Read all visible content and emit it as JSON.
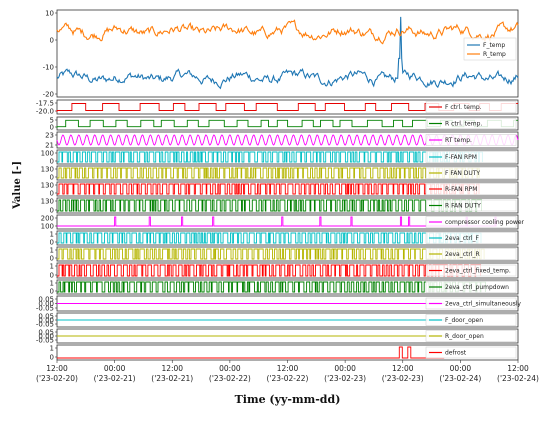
{
  "chart_data": {
    "type": "line",
    "xlabel": "Time (yy-mm-dd)",
    "ylabel": "Value [-]",
    "x_range_days": [
      0,
      4.0
    ],
    "x_ticks": [
      {
        "pos": 0.0,
        "time": "12:00",
        "date": "('23-02-20)"
      },
      {
        "pos": 0.5,
        "time": "00:00",
        "date": "('23-02-21)"
      },
      {
        "pos": 1.0,
        "time": "12:00",
        "date": "('23-02-21)"
      },
      {
        "pos": 1.5,
        "time": "00:00",
        "date": "('23-02-22)"
      },
      {
        "pos": 2.0,
        "time": "12:00",
        "date": "('23-02-22)"
      },
      {
        "pos": 2.5,
        "time": "00:00",
        "date": "('23-02-23)"
      },
      {
        "pos": 3.0,
        "time": "12:00",
        "date": "('23-02-23)"
      },
      {
        "pos": 3.5,
        "time": "00:00",
        "date": "('23-02-24)"
      },
      {
        "pos": 4.0,
        "time": "12:00",
        "date": "('23-02-24)"
      }
    ],
    "panels": [
      {
        "id": "temps",
        "yticks": [
          "10",
          "0",
          "-10",
          "-20"
        ],
        "ylim": [
          -24,
          10
        ],
        "series": [
          {
            "name": "F_temp",
            "color": "#1f77b4",
            "kind": "noise",
            "base": -17,
            "amp": 3,
            "spike_day": 2.98,
            "spike_val": 8
          },
          {
            "name": "R_temp",
            "color": "#ff7f0e",
            "kind": "noise",
            "base": 2,
            "amp": 3
          }
        ]
      },
      {
        "id": "f-ctrl",
        "yticks": [
          "-17.5",
          "-20.0"
        ],
        "series": [
          {
            "name": "F ctrl. temp.",
            "color": "#e60000",
            "kind": "step",
            "switches": 30
          }
        ]
      },
      {
        "id": "r-ctrl",
        "yticks": [
          "5",
          "0"
        ],
        "series": [
          {
            "name": "R ctrl. temp.",
            "color": "#008000",
            "kind": "step",
            "switches": 40
          }
        ]
      },
      {
        "id": "rt",
        "yticks": [
          "23",
          "21"
        ],
        "series": [
          {
            "name": "RT temp.",
            "color": "#ff00ff",
            "kind": "wave",
            "cycles": 58
          }
        ]
      },
      {
        "id": "ffan",
        "yticks": [
          "100",
          "0"
        ],
        "series": [
          {
            "name": "F-FAN RPM",
            "color": "#00bfc4",
            "kind": "pulse",
            "count": 60
          }
        ]
      },
      {
        "id": "fduty",
        "yticks": [
          "130",
          "0"
        ],
        "series": [
          {
            "name": "F FAN DUTY",
            "color": "#b5b500",
            "kind": "pulse",
            "count": 60
          }
        ]
      },
      {
        "id": "rfan",
        "yticks": [
          "130",
          "0"
        ],
        "series": [
          {
            "name": "R-FAN RPM",
            "color": "#ff0000",
            "kind": "pulse",
            "count": 60
          }
        ]
      },
      {
        "id": "rduty",
        "yticks": [
          "130",
          "0"
        ],
        "series": [
          {
            "name": "R FAN DUTY",
            "color": "#008000",
            "kind": "pulse",
            "count": 60
          }
        ]
      },
      {
        "id": "comp",
        "yticks": [
          "200",
          "100"
        ],
        "series": [
          {
            "name": "compressor cooling power",
            "color": "#ff00ff",
            "kind": "spikes",
            "days": [
              0.5,
              0.8,
              1.08,
              1.35,
              1.95,
              2.28,
              2.55,
              2.98,
              3.05,
              3.55,
              3.8
            ]
          }
        ]
      },
      {
        "id": "eva-f",
        "yticks": [
          "1",
          "0"
        ],
        "series": [
          {
            "name": "2eva_ctrl_F",
            "color": "#00bfc4",
            "kind": "pulse",
            "count": 70
          }
        ]
      },
      {
        "id": "eva-r",
        "yticks": [
          "1",
          "0"
        ],
        "series": [
          {
            "name": "2eva_ctrl_R",
            "color": "#b5b500",
            "kind": "pulse",
            "count": 70
          }
        ]
      },
      {
        "id": "eva-fixed",
        "yticks": [
          "1",
          "0"
        ],
        "series": [
          {
            "name": "2eva_ctrl_fixed_temp.",
            "color": "#ff0000",
            "kind": "pulse",
            "count": 70
          }
        ]
      },
      {
        "id": "eva-pump",
        "yticks": [
          "1",
          "0"
        ],
        "series": [
          {
            "name": "2eva_ctrl_pumpdown",
            "color": "#008000",
            "kind": "pulse",
            "count": 70
          }
        ]
      },
      {
        "id": "eva-sim",
        "yticks": [
          "0.05",
          "0.00",
          "-0.05"
        ],
        "series": [
          {
            "name": "2eva_ctrl_simultaneously",
            "color": "#ff00ff",
            "kind": "flat"
          }
        ]
      },
      {
        "id": "fdoor",
        "yticks": [
          "0.05",
          "0.00",
          "-0.05"
        ],
        "series": [
          {
            "name": "F_door_open",
            "color": "#00bfc4",
            "kind": "flat"
          }
        ]
      },
      {
        "id": "rdoor",
        "yticks": [
          "0.05",
          "0.00",
          "-0.05"
        ],
        "series": [
          {
            "name": "R_door_open",
            "color": "#b5b500",
            "kind": "flat"
          }
        ]
      },
      {
        "id": "defrost",
        "yticks": [
          "1",
          "0"
        ],
        "series": [
          {
            "name": "defrost",
            "color": "#ff0000",
            "kind": "defrost",
            "start": 2.97,
            "end": 3.07
          }
        ]
      }
    ]
  }
}
